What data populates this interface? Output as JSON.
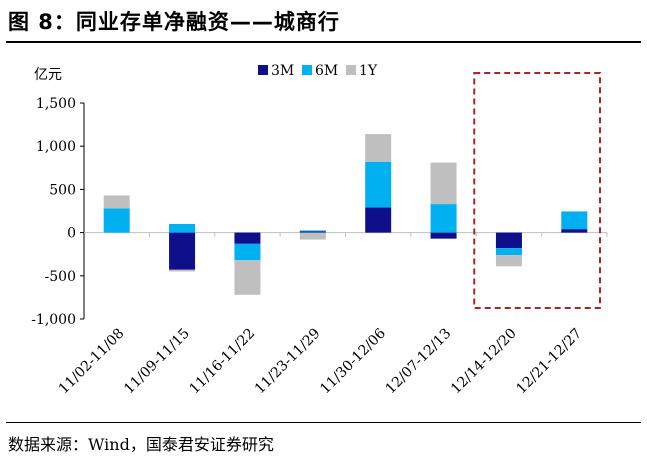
{
  "figure": {
    "title": "图 8：同业存单净融资——城商行",
    "source": "数据来源：Wind，国泰君安证券研究"
  },
  "chart_data": {
    "type": "bar",
    "stacked": true,
    "ylabel": "亿元",
    "ylim": [
      -1000,
      1500
    ],
    "yticks": [
      -1000,
      -500,
      0,
      500,
      1000,
      1500
    ],
    "ytick_labels": [
      "-1,000",
      "-500",
      "0",
      "500",
      "1,000",
      "1,500"
    ],
    "categories": [
      "11/02-11/08",
      "11/09-11/15",
      "11/16-11/22",
      "11/23-11/29",
      "11/30-12/06",
      "12/07-12/13",
      "12/14-12/20",
      "12/21-12/27"
    ],
    "series": [
      {
        "name": "3M",
        "color": "#0f0f8c",
        "values": [
          0,
          -430,
          -130,
          15,
          290,
          -70,
          -180,
          40
        ]
      },
      {
        "name": "6M",
        "color": "#00b0f0",
        "values": [
          280,
          100,
          -190,
          10,
          530,
          330,
          -80,
          205
        ]
      },
      {
        "name": "1Y",
        "color": "#bfbfbf",
        "values": [
          150,
          -20,
          -400,
          -80,
          320,
          480,
          -130,
          0
        ]
      }
    ],
    "legend_position": "top-center",
    "grid": false,
    "highlight": {
      "categories": [
        "12/14-12/20",
        "12/21-12/27"
      ],
      "style": "dashed",
      "color": "#b22222"
    }
  }
}
